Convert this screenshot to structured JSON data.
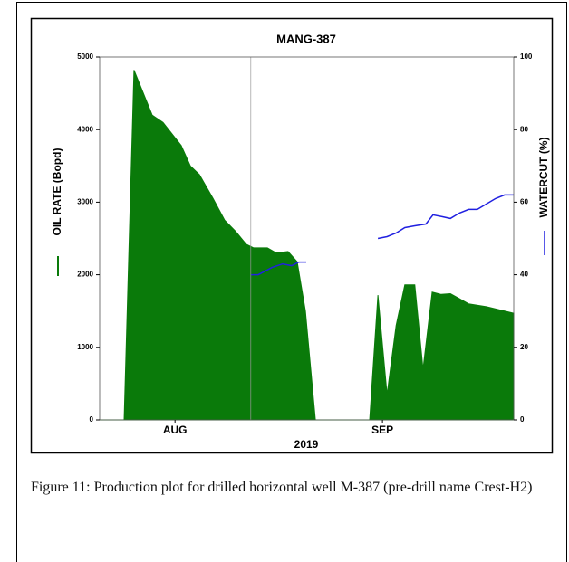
{
  "chart_data": {
    "type": "area-line",
    "title": "MANG-387",
    "ylabel": "OIL RATE (Bopd)",
    "y2label": "WATERCUT (%)",
    "xlabel": "2019",
    "xlim": [
      0,
      100
    ],
    "xticks": [
      {
        "value": 18.2,
        "label": "AUG"
      },
      {
        "value": 68.3,
        "label": "SEP"
      }
    ],
    "xgrid": [
      36.5
    ],
    "ylim": [
      0,
      5000
    ],
    "yticks": [
      0,
      1000,
      2000,
      3000,
      4000,
      5000
    ],
    "y2lim": [
      0,
      100
    ],
    "y2ticks": [
      0,
      20,
      40,
      60,
      80,
      100
    ],
    "series": [
      {
        "name": "OIL RATE",
        "color": "#0a7a0a",
        "kind": "area",
        "x": [
          0,
          5.9,
          8.3,
          12.7,
          15.3,
          19.7,
          21.9,
          24.1,
          27.4,
          30.2,
          32.8,
          35.4,
          37.2,
          40.5,
          42.7,
          45.5,
          47.7,
          49.7,
          52.1,
          65.2,
          67.2,
          69.4,
          71.6,
          73.7,
          76.1,
          78.1,
          80.3,
          82.5,
          84.7,
          89.1,
          93.4,
          100
        ],
        "values": [
          0,
          0,
          4820,
          4200,
          4100,
          3780,
          3500,
          3380,
          3050,
          2750,
          2600,
          2420,
          2370,
          2370,
          2300,
          2320,
          2180,
          1500,
          0,
          0,
          1720,
          350,
          1300,
          1860,
          1860,
          700,
          1760,
          1730,
          1740,
          1600,
          1560,
          1470
        ]
      },
      {
        "name": "WATERCUT",
        "color": "#2020e0",
        "kind": "line",
        "axis": "y2",
        "x": [
          36.5,
          38.3,
          41.6,
          44.2,
          46.4,
          48.1,
          49.9,
          null,
          67.2,
          69.4,
          71.6,
          73.7,
          76.1,
          78.8,
          80.5,
          82.7,
          84.7,
          86.9,
          89.1,
          91.2,
          93.4,
          95.6,
          97.8,
          100
        ],
        "values": [
          40,
          40,
          42,
          43,
          42.5,
          43.5,
          43.5,
          null,
          50,
          50.5,
          51.5,
          53,
          53.5,
          54,
          56.5,
          56,
          55.5,
          57,
          58,
          58,
          59.5,
          61,
          62,
          62
        ]
      }
    ]
  },
  "caption": "Figure 11: Production plot for drilled horizontal well M-387 (pre-drill name Crest-H2)"
}
